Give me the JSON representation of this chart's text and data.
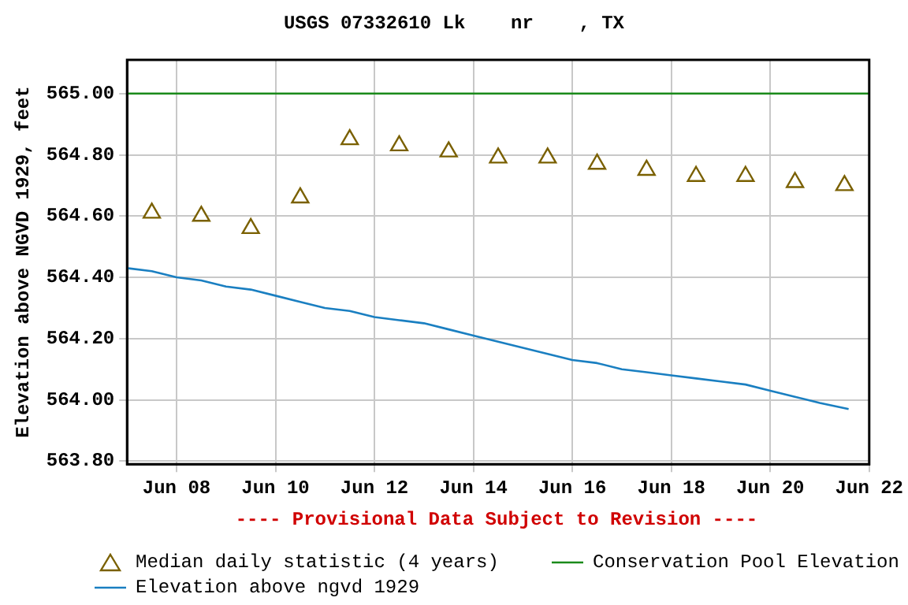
{
  "chart_data": {
    "type": "line",
    "title": "USGS 07332610 Lk    nr    , TX",
    "ylabel": "Elevation above NGVD 1929, feet",
    "annotations": [
      "---- Provisional Data Subject to Revision ----"
    ],
    "xlim": [
      "--06-07",
      "--06-22"
    ],
    "xticks": [
      {
        "value": "--06-08",
        "label": "Jun 08"
      },
      {
        "value": "--06-10",
        "label": "Jun 10"
      },
      {
        "value": "--06-12",
        "label": "Jun 12"
      },
      {
        "value": "--06-14",
        "label": "Jun 14"
      },
      {
        "value": "--06-16",
        "label": "Jun 16"
      },
      {
        "value": "--06-18",
        "label": "Jun 18"
      },
      {
        "value": "--06-20",
        "label": "Jun 20"
      },
      {
        "value": "--06-22",
        "label": "Jun 22"
      }
    ],
    "ylim": [
      563.79,
      565.11
    ],
    "yticks": [
      {
        "value": 563.8,
        "label": "563.80"
      },
      {
        "value": 564.0,
        "label": "564.00"
      },
      {
        "value": 564.2,
        "label": "564.20"
      },
      {
        "value": 564.4,
        "label": "564.40"
      },
      {
        "value": 564.6,
        "label": "564.60"
      },
      {
        "value": 564.8,
        "label": "564.80"
      },
      {
        "value": 565.0,
        "label": "565.00"
      }
    ],
    "grid": true,
    "legend": "bottom",
    "series": [
      {
        "name": "Median daily statistic (4 years)",
        "type": "scatter",
        "marker": "triangle",
        "color": "#7a6000",
        "x": [
          "--06-07T12:00",
          "--06-08T12:00",
          "--06-09T12:00",
          "--06-10T12:00",
          "--06-11T12:00",
          "--06-12T12:00",
          "--06-13T12:00",
          "--06-14T12:00",
          "--06-15T12:00",
          "--06-16T12:00",
          "--06-17T12:00",
          "--06-18T12:00",
          "--06-19T12:00",
          "--06-20T12:00",
          "--06-21T12:00"
        ],
        "values": [
          564.61,
          564.6,
          564.56,
          564.66,
          564.85,
          564.83,
          564.81,
          564.79,
          564.79,
          564.77,
          564.75,
          564.73,
          564.73,
          564.71,
          564.7
        ]
      },
      {
        "name": "Elevation above ngvd 1929",
        "marker": "none",
        "line_style": "solid",
        "color": "#1a7fc1",
        "x": [
          "--06-07T00:00",
          "--06-07T12:00",
          "--06-08T00:00",
          "--06-08T12:00",
          "--06-09T00:00",
          "--06-09T12:00",
          "--06-10T00:00",
          "--06-10T12:00",
          "--06-11T00:00",
          "--06-11T12:00",
          "--06-12T00:00",
          "--06-12T12:00",
          "--06-13T00:00",
          "--06-13T12:00",
          "--06-14T00:00",
          "--06-14T12:00",
          "--06-15T00:00",
          "--06-15T12:00",
          "--06-16T00:00",
          "--06-16T12:00",
          "--06-17T00:00",
          "--06-17T12:00",
          "--06-18T00:00",
          "--06-18T12:00",
          "--06-19T00:00",
          "--06-19T12:00",
          "--06-20T00:00",
          "--06-20T12:00",
          "--06-21T00:00",
          "--06-21T14:00"
        ],
        "values": [
          564.43,
          564.42,
          564.4,
          564.39,
          564.37,
          564.36,
          564.34,
          564.32,
          564.3,
          564.29,
          564.27,
          564.26,
          564.25,
          564.23,
          564.21,
          564.19,
          564.17,
          564.15,
          564.13,
          564.12,
          564.1,
          564.09,
          564.08,
          564.07,
          564.06,
          564.05,
          564.03,
          564.01,
          563.99,
          563.97
        ]
      }
    ],
    "ref_lines": [
      {
        "axis": "y",
        "value": 565.0,
        "label": "Conservation Pool Elevation",
        "color": "#1a8a1a",
        "line_style": "solid"
      }
    ]
  }
}
